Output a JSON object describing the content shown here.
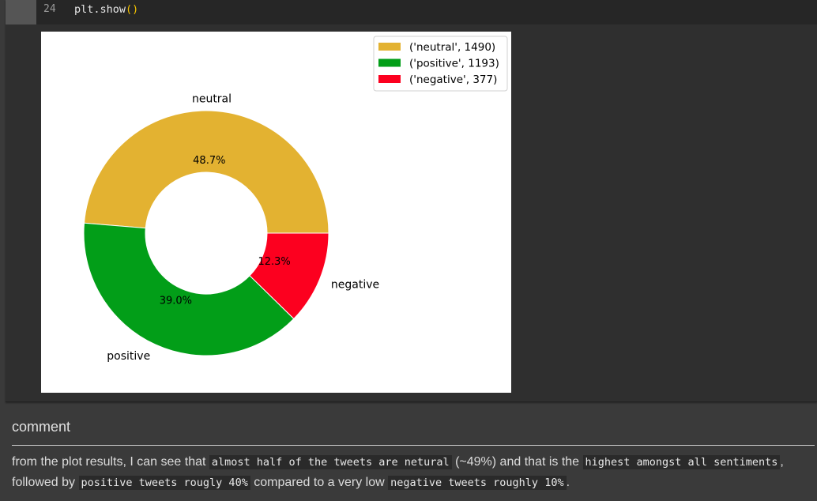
{
  "code_cell": {
    "line_number": "24",
    "code_prefix": "plt.show",
    "code_parens": "()"
  },
  "chart_data": {
    "type": "pie",
    "style": "donut",
    "slices": [
      {
        "label": "neutral",
        "value": 1490,
        "pct_label": "48.7%",
        "legend": "('neutral', 1490)",
        "color": "#e3b231"
      },
      {
        "label": "positive",
        "value": 1193,
        "pct_label": "39.0%",
        "legend": "('positive', 1193)",
        "color": "#029e18"
      },
      {
        "label": "negative",
        "value": 377,
        "pct_label": "12.3%",
        "legend": "('negative', 377)",
        "color": "#fc001f"
      }
    ],
    "legend_position": "top-right",
    "start_angle_deg": 0,
    "direction": "counterclockwise"
  },
  "markdown": {
    "heading": "comment",
    "p_part1": "from the plot results, I can see that ",
    "code1": "almost half of the tweets are netural",
    "p_part2": " (~49%) and that is the ",
    "code2": "highest amongst all sentiments",
    "p_part3": ", followed by ",
    "code3": "positive tweets rougly 40%",
    "p_part4": " compared to a very low ",
    "code4": "negative tweets roughly 10%",
    "p_part5": "."
  }
}
